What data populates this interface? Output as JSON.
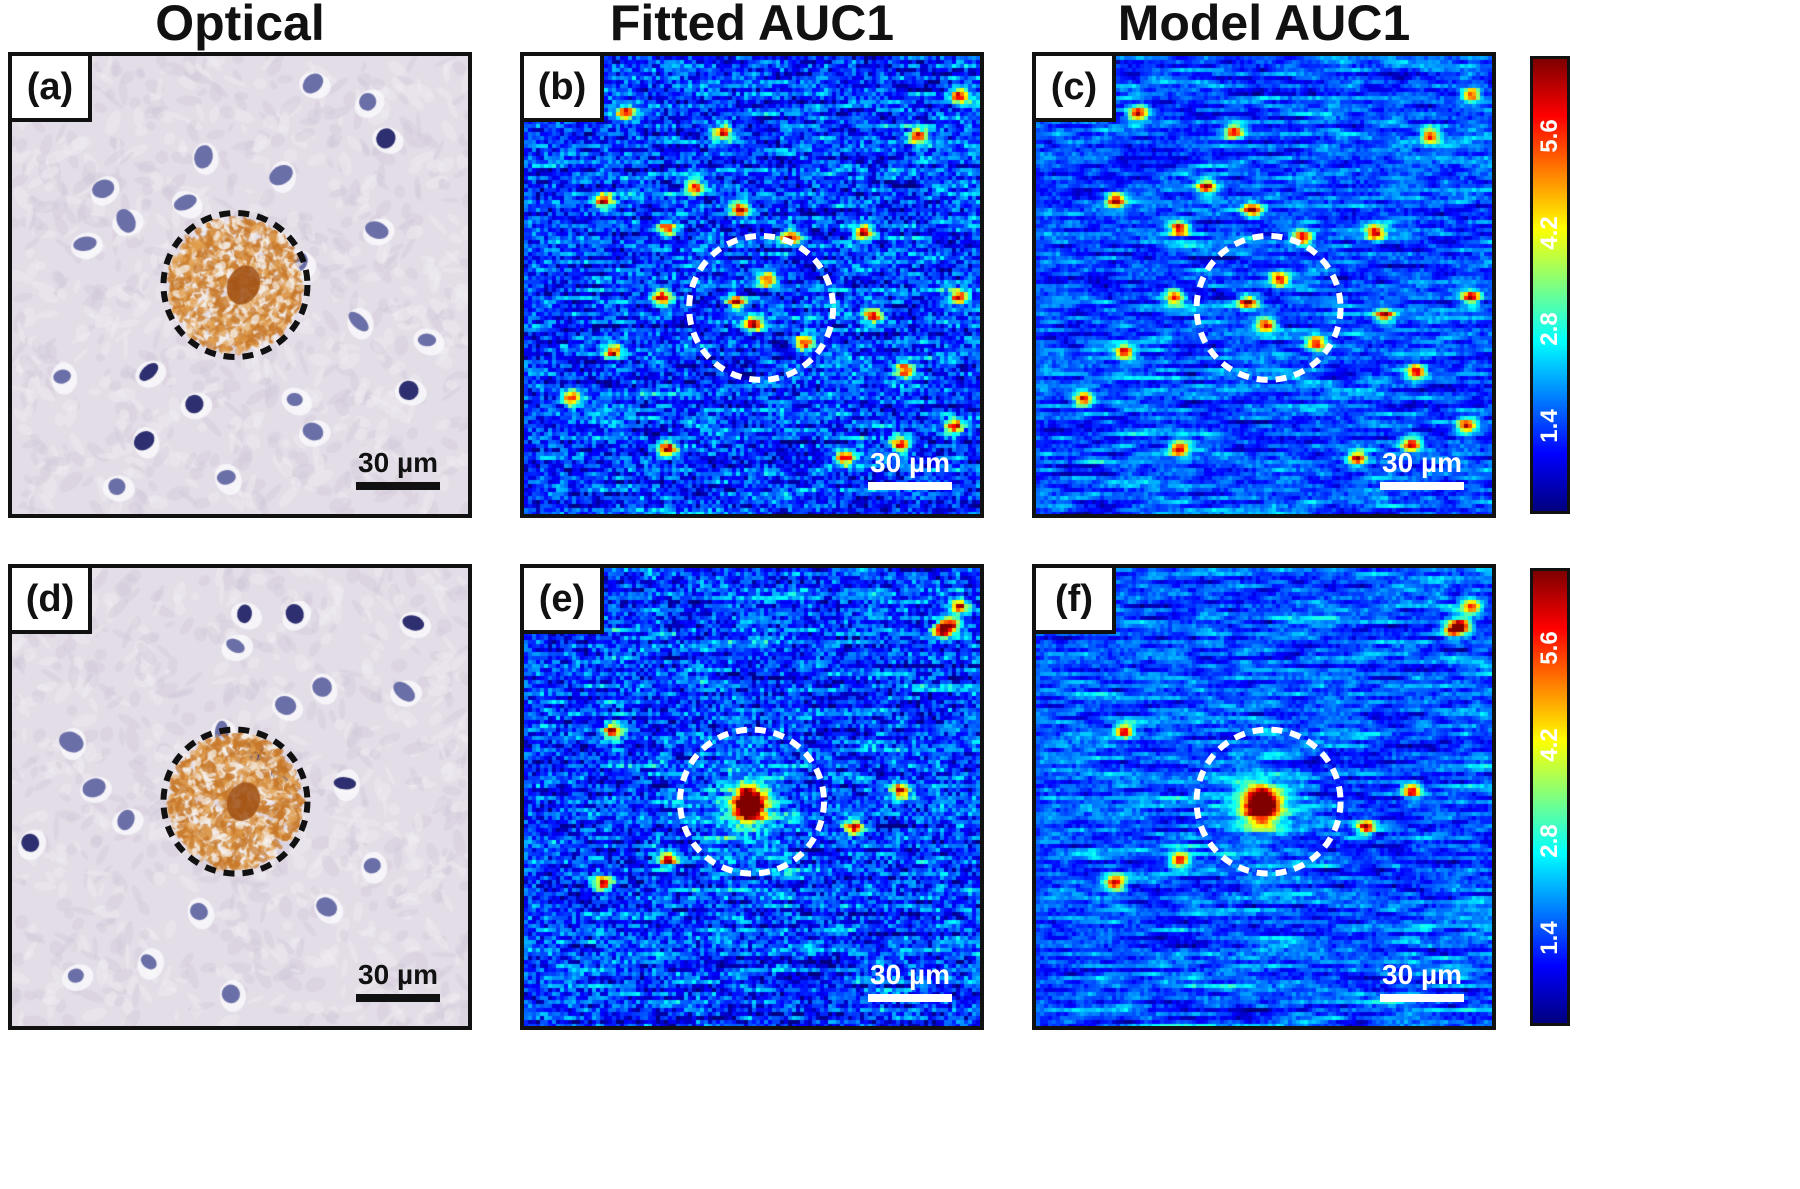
{
  "columns": {
    "optical": "Optical",
    "fitted": "Fitted AUC1",
    "model": "Model AUC1"
  },
  "panels": [
    {
      "label": "(a)",
      "kind": "optical",
      "scale": "30 µm"
    },
    {
      "label": "(b)",
      "kind": "fitted",
      "scale": "30 µm"
    },
    {
      "label": "(c)",
      "kind": "model",
      "scale": "30 µm"
    },
    {
      "label": "(d)",
      "kind": "optical",
      "scale": "30 µm"
    },
    {
      "label": "(e)",
      "kind": "fitted",
      "scale": "30 µm"
    },
    {
      "label": "(f)",
      "kind": "model",
      "scale": "30 µm"
    }
  ],
  "colorbar": {
    "colormap": "jet",
    "ticks": [
      "1.4",
      "2.8",
      "4.2",
      "5.6"
    ],
    "tick_colors": [
      "#ffffff",
      "#ffffff",
      "#ffffff",
      "#ffffff"
    ]
  },
  "colors": {
    "plaque_outline_optical": "#111111",
    "plaque_outline_map": "#ffffff",
    "optical_background": "#e6e0e8",
    "amyloid_stain": "#c27a2a",
    "nuclei": "#5a5fa0"
  }
}
